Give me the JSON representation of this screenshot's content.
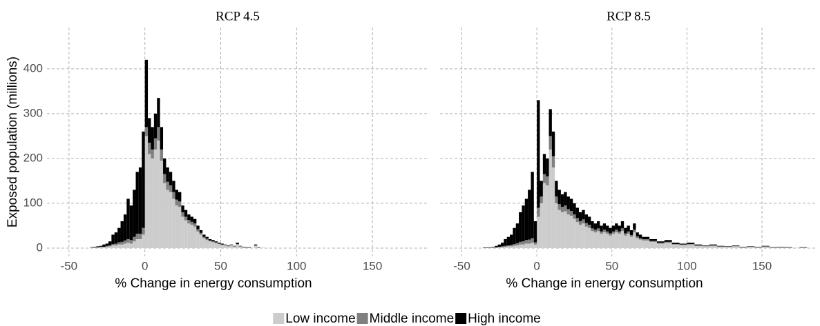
{
  "chart_data": [
    {
      "type": "histogram",
      "title": "RCP 4.5",
      "x_label": "% Change in energy consumption",
      "y_label": "Exposed population (millions)",
      "bins": [
        -36,
        -34,
        -32,
        -30,
        -28,
        -26,
        -24,
        -22,
        -20,
        -18,
        -16,
        -14,
        -12,
        -10,
        -8,
        -6,
        -4,
        -2,
        0,
        2,
        4,
        6,
        8,
        10,
        12,
        14,
        16,
        18,
        20,
        22,
        24,
        26,
        28,
        30,
        32,
        34,
        36,
        38,
        40,
        42,
        44,
        46,
        48,
        50,
        52,
        54,
        56,
        58,
        60,
        62,
        64,
        66,
        68,
        70,
        72,
        74,
        76,
        78,
        80
      ],
      "series": [
        {
          "name": "Low income",
          "color": "#cccccc",
          "values": [
            1,
            1,
            1,
            2,
            2,
            3,
            4,
            6,
            6,
            8,
            8,
            10,
            12,
            10,
            15,
            20,
            20,
            30,
            250,
            210,
            200,
            220,
            240,
            195,
            145,
            130,
            125,
            110,
            95,
            92,
            70,
            62,
            55,
            52,
            48,
            37,
            30,
            22,
            18,
            15,
            13,
            11,
            9,
            7,
            6,
            4,
            6,
            4,
            8,
            4,
            2,
            1,
            1,
            1,
            5,
            1,
            1,
            1
          ]
        },
        {
          "name": "Middle income",
          "color": "#808080",
          "values": [
            0,
            1,
            1,
            1,
            1,
            2,
            2,
            3,
            4,
            5,
            6,
            7,
            8,
            8,
            10,
            12,
            12,
            15,
            20,
            25,
            20,
            25,
            30,
            25,
            20,
            18,
            15,
            15,
            13,
            12,
            10,
            8,
            8,
            7,
            7,
            5,
            4,
            3,
            3,
            2,
            2,
            2,
            1,
            1,
            1,
            1,
            1,
            0,
            1,
            0,
            0,
            0,
            0,
            0,
            1,
            0,
            0,
            0
          ]
        },
        {
          "name": "High income",
          "color": "#000000",
          "values": [
            1,
            1,
            2,
            2,
            5,
            5,
            9,
            21,
            25,
            32,
            46,
            58,
            90,
            77,
            105,
            138,
            148,
            215,
            150,
            55,
            50,
            55,
            65,
            50,
            35,
            32,
            30,
            25,
            22,
            21,
            15,
            15,
            12,
            11,
            10,
            8,
            6,
            5,
            4,
            3,
            3,
            2,
            2,
            2,
            1,
            1,
            1,
            1,
            3,
            1,
            1,
            1,
            1,
            0,
            2,
            1,
            0,
            0
          ]
        }
      ],
      "xlim": [
        -64.5,
        186.8
      ],
      "ylim": [
        -18.5,
        492
      ],
      "xticks": [
        -50,
        0,
        50,
        100,
        150
      ],
      "yticks": [
        0,
        100,
        200,
        300,
        400
      ],
      "ytick_labels": true,
      "grid": true,
      "legend": "bottom"
    },
    {
      "type": "histogram",
      "title": "RCP 8.5",
      "x_label": "% Change in energy consumption",
      "bins": [
        -36,
        -34,
        -32,
        -30,
        -28,
        -26,
        -24,
        -22,
        -20,
        -18,
        -16,
        -14,
        -12,
        -10,
        -8,
        -6,
        -4,
        -2,
        0,
        2,
        4,
        6,
        8,
        10,
        12,
        14,
        16,
        18,
        20,
        22,
        24,
        26,
        28,
        30,
        32,
        34,
        36,
        38,
        40,
        42,
        44,
        46,
        48,
        50,
        52,
        54,
        56,
        58,
        60,
        62,
        64,
        66,
        68,
        70,
        75,
        80,
        85,
        90,
        95,
        100,
        105,
        110,
        115,
        120,
        125,
        130,
        135,
        140,
        145,
        150,
        155,
        160,
        165,
        170,
        175,
        180
      ],
      "series": [
        {
          "name": "Low income",
          "color": "#cccccc",
          "values": [
            0,
            0,
            1,
            1,
            1,
            2,
            2,
            3,
            4,
            4,
            5,
            6,
            8,
            8,
            10,
            10,
            12,
            8,
            70,
            100,
            145,
            140,
            220,
            180,
            100,
            85,
            80,
            82,
            75,
            72,
            65,
            58,
            52,
            55,
            48,
            45,
            38,
            35,
            38,
            32,
            35,
            32,
            28,
            32,
            35,
            32,
            38,
            28,
            32,
            25,
            35,
            22,
            19,
            17,
            14,
            10,
            12,
            8,
            7,
            8,
            5,
            4,
            5,
            3,
            3,
            4,
            2,
            3,
            2,
            3,
            1,
            2,
            1,
            1,
            1
          ]
        },
        {
          "name": "Middle income",
          "color": "#808080",
          "values": [
            0,
            0,
            0,
            1,
            1,
            1,
            2,
            2,
            2,
            3,
            4,
            5,
            6,
            7,
            8,
            9,
            10,
            5,
            20,
            15,
            20,
            20,
            30,
            25,
            15,
            13,
            12,
            13,
            12,
            11,
            10,
            9,
            8,
            9,
            8,
            7,
            6,
            6,
            6,
            5,
            6,
            5,
            5,
            5,
            6,
            5,
            6,
            5,
            5,
            4,
            6,
            4,
            3,
            3,
            2,
            2,
            2,
            1,
            1,
            1,
            1,
            1,
            1,
            1,
            0,
            1,
            0,
            0,
            0,
            1,
            0,
            0,
            0,
            0,
            0
          ]
        },
        {
          "name": "High income",
          "color": "#000000",
          "values": [
            1,
            1,
            1,
            1,
            3,
            5,
            8,
            15,
            19,
            23,
            36,
            44,
            66,
            80,
            92,
            111,
            148,
            47,
            240,
            35,
            45,
            40,
            60,
            55,
            35,
            32,
            28,
            30,
            28,
            27,
            25,
            23,
            20,
            21,
            19,
            18,
            16,
            14,
            16,
            13,
            14,
            13,
            12,
            13,
            14,
            13,
            16,
            12,
            13,
            11,
            14,
            9,
            8,
            5,
            4,
            3,
            4,
            3,
            2,
            3,
            2,
            1,
            2,
            1,
            1,
            1,
            1,
            1,
            1,
            1,
            1,
            1,
            1,
            0,
            1
          ]
        }
      ],
      "xlim": [
        -64.5,
        186.8
      ],
      "ylim": [
        -18.5,
        492
      ],
      "xticks": [
        -50,
        0,
        50,
        100,
        150
      ],
      "yticks": [
        0,
        100,
        200,
        300,
        400
      ],
      "ytick_labels": false,
      "grid": true,
      "legend": "none"
    }
  ]
}
